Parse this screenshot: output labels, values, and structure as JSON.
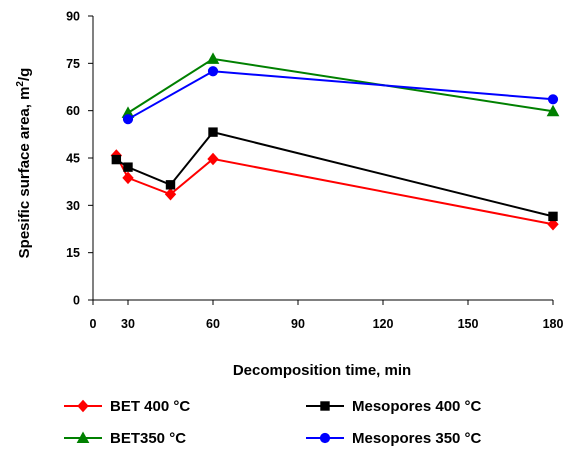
{
  "chart_data": {
    "type": "line",
    "title": "",
    "xlabel": "Decomposition time, min",
    "ylabel": {
      "prefix": "Spesific surface area, m",
      "superscript": "2",
      "suffix": "/g"
    },
    "xlim": [
      0,
      180
    ],
    "ylim": [
      0,
      90
    ],
    "x_scale": "piecewise",
    "x_ticks": [
      0,
      30,
      60,
      90,
      120,
      150,
      180
    ],
    "y_ticks": [
      0,
      15,
      30,
      45,
      60,
      75,
      90
    ],
    "grid": false,
    "legend_position": "bottom",
    "series": [
      {
        "name": "BET 400 °C",
        "color": "#ff0000",
        "marker": "diamond",
        "x": [
          20,
          30,
          45,
          60,
          180
        ],
        "y": [
          45.8,
          38.7,
          33.5,
          44.7,
          24.0
        ]
      },
      {
        "name": "Mesopores 400 °C",
        "color": "#000000",
        "marker": "square",
        "x": [
          20,
          30,
          45,
          60,
          180
        ],
        "y": [
          44.5,
          42.1,
          36.5,
          53.2,
          26.5
        ]
      },
      {
        "name": "BET350 °C",
        "color": "#008000",
        "marker": "triangle",
        "x": [
          30,
          60,
          180
        ],
        "y": [
          59.3,
          76.4,
          59.8
        ]
      },
      {
        "name": "Mesopores 350 °C",
        "color": "#0000ff",
        "marker": "circle",
        "x": [
          30,
          60,
          180
        ],
        "y": [
          57.3,
          72.5,
          63.6
        ]
      }
    ]
  }
}
